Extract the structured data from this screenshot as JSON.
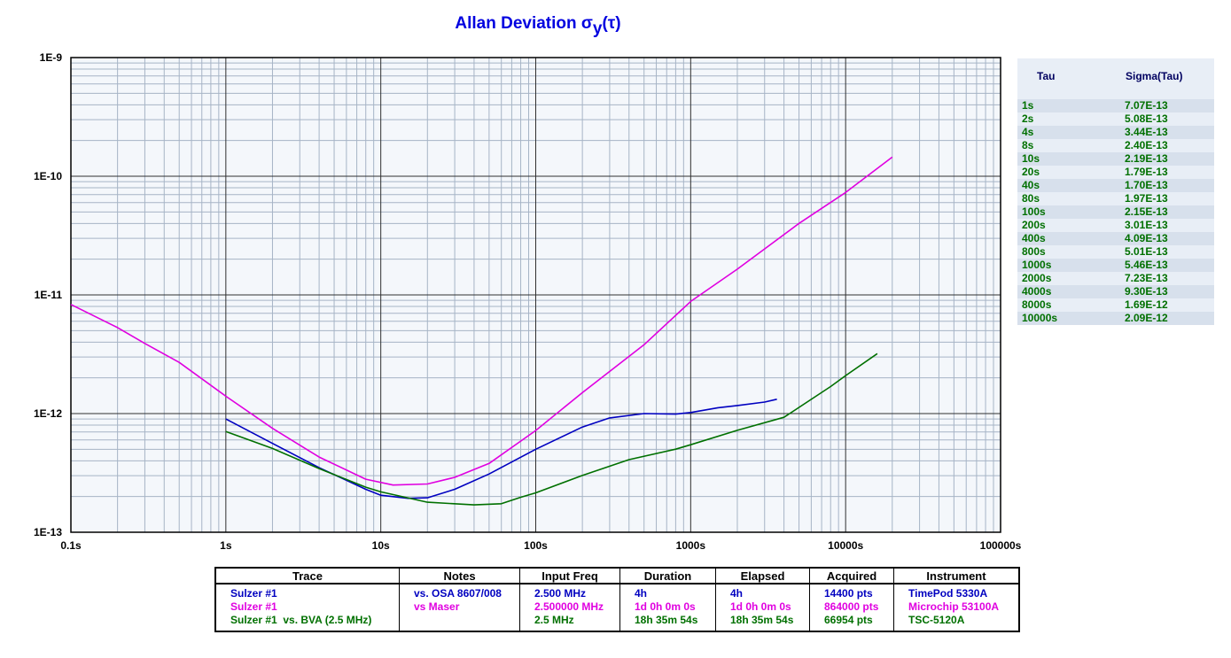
{
  "chart_data": {
    "type": "line",
    "title": "Allan Deviation σ",
    "title_sub": "y",
    "title_suffix": "(τ)",
    "x_scale": "log",
    "y_scale": "log",
    "xlim": [
      0.1,
      100000
    ],
    "ylim": [
      1e-13,
      1e-09
    ],
    "x_ticks": [
      {
        "v": 0.1,
        "label": "0.1s"
      },
      {
        "v": 1,
        "label": "1s"
      },
      {
        "v": 10,
        "label": "10s"
      },
      {
        "v": 100,
        "label": "100s"
      },
      {
        "v": 1000,
        "label": "1000s"
      },
      {
        "v": 10000,
        "label": "10000s"
      },
      {
        "v": 100000,
        "label": "100000s"
      }
    ],
    "y_ticks": [
      {
        "v": 1e-09,
        "label": "1E-9"
      },
      {
        "v": 1e-10,
        "label": "1E-10"
      },
      {
        "v": 1e-11,
        "label": "1E-11"
      },
      {
        "v": 1e-12,
        "label": "1E-12"
      },
      {
        "v": 1e-13,
        "label": "1E-13"
      }
    ],
    "grid": true,
    "series": [
      {
        "color": "#0000c0",
        "points": [
          [
            1,
            9e-13
          ],
          [
            2,
            5.6e-13
          ],
          [
            4,
            3.5e-13
          ],
          [
            8,
            2.3e-13
          ],
          [
            10,
            2.05e-13
          ],
          [
            15,
            1.93e-13
          ],
          [
            20,
            1.95e-13
          ],
          [
            30,
            2.3e-13
          ],
          [
            50,
            3.1e-13
          ],
          [
            100,
            5e-13
          ],
          [
            200,
            7.7e-13
          ],
          [
            300,
            9.2e-13
          ],
          [
            500,
            1e-12
          ],
          [
            800,
            9.9e-13
          ],
          [
            1000,
            1.02e-12
          ],
          [
            1500,
            1.12e-12
          ],
          [
            2000,
            1.17e-12
          ],
          [
            3000,
            1.25e-12
          ],
          [
            3600,
            1.32e-12
          ]
        ]
      },
      {
        "color": "#e000e0",
        "points": [
          [
            0.1,
            8.3e-12
          ],
          [
            0.2,
            5.3e-12
          ],
          [
            0.3,
            3.9e-12
          ],
          [
            0.5,
            2.7e-12
          ],
          [
            1,
            1.4e-12
          ],
          [
            2,
            7.5e-13
          ],
          [
            4,
            4.3e-13
          ],
          [
            8,
            2.8e-13
          ],
          [
            12,
            2.5e-13
          ],
          [
            20,
            2.55e-13
          ],
          [
            30,
            2.9e-13
          ],
          [
            50,
            3.8e-13
          ],
          [
            100,
            7.2e-13
          ],
          [
            200,
            1.5e-12
          ],
          [
            500,
            3.8e-12
          ],
          [
            1000,
            8.8e-12
          ],
          [
            2000,
            1.65e-11
          ],
          [
            5000,
            4e-11
          ],
          [
            10000,
            7.3e-11
          ],
          [
            20000,
            1.45e-10
          ]
        ]
      },
      {
        "color": "#007000",
        "points": [
          [
            1,
            7.07e-13
          ],
          [
            2,
            5.08e-13
          ],
          [
            4,
            3.44e-13
          ],
          [
            8,
            2.4e-13
          ],
          [
            10,
            2.19e-13
          ],
          [
            20,
            1.79e-13
          ],
          [
            40,
            1.7e-13
          ],
          [
            60,
            1.74e-13
          ],
          [
            80,
            1.97e-13
          ],
          [
            100,
            2.15e-13
          ],
          [
            200,
            3.01e-13
          ],
          [
            400,
            4.09e-13
          ],
          [
            800,
            5.01e-13
          ],
          [
            1000,
            5.46e-13
          ],
          [
            2000,
            7.23e-13
          ],
          [
            4000,
            9.3e-13
          ],
          [
            8000,
            1.69e-12
          ],
          [
            10000,
            2.09e-12
          ],
          [
            16000,
            3.2e-12
          ]
        ]
      }
    ]
  },
  "side_table": {
    "headers": [
      "Tau",
      "Sigma(Tau)"
    ],
    "rows": [
      [
        "1s",
        "7.07E-13"
      ],
      [
        "2s",
        "5.08E-13"
      ],
      [
        "4s",
        "3.44E-13"
      ],
      [
        "8s",
        "2.40E-13"
      ],
      [
        "10s",
        "2.19E-13"
      ],
      [
        "20s",
        "1.79E-13"
      ],
      [
        "40s",
        "1.70E-13"
      ],
      [
        "80s",
        "1.97E-13"
      ],
      [
        "100s",
        "2.15E-13"
      ],
      [
        "200s",
        "3.01E-13"
      ],
      [
        "400s",
        "4.09E-13"
      ],
      [
        "800s",
        "5.01E-13"
      ],
      [
        "1000s",
        "5.46E-13"
      ],
      [
        "2000s",
        "7.23E-13"
      ],
      [
        "4000s",
        "9.30E-13"
      ],
      [
        "8000s",
        "1.69E-12"
      ],
      [
        "10000s",
        "2.09E-12"
      ]
    ]
  },
  "legend_table": {
    "headers": [
      "Trace",
      "Notes",
      "Input Freq",
      "Duration",
      "Elapsed",
      "Acquired",
      "Instrument"
    ],
    "columns": [
      [
        "Sulzer #1",
        "Sulzer #1",
        "Sulzer #1  vs. BVA (2.5 MHz)"
      ],
      [
        "vs. OSA 8607/008",
        "vs Maser",
        ""
      ],
      [
        "2.500 MHz",
        "2.500000 MHz",
        "2.5 MHz"
      ],
      [
        "4h",
        "1d 0h 0m 0s",
        "18h 35m 54s"
      ],
      [
        "4h",
        "1d 0h 0m 0s",
        "18h 35m 54s"
      ],
      [
        "14400 pts",
        "864000 pts",
        "66954 pts"
      ],
      [
        "TimePod 5330A",
        "Microchip 53100A",
        "TSC-5120A"
      ]
    ]
  }
}
